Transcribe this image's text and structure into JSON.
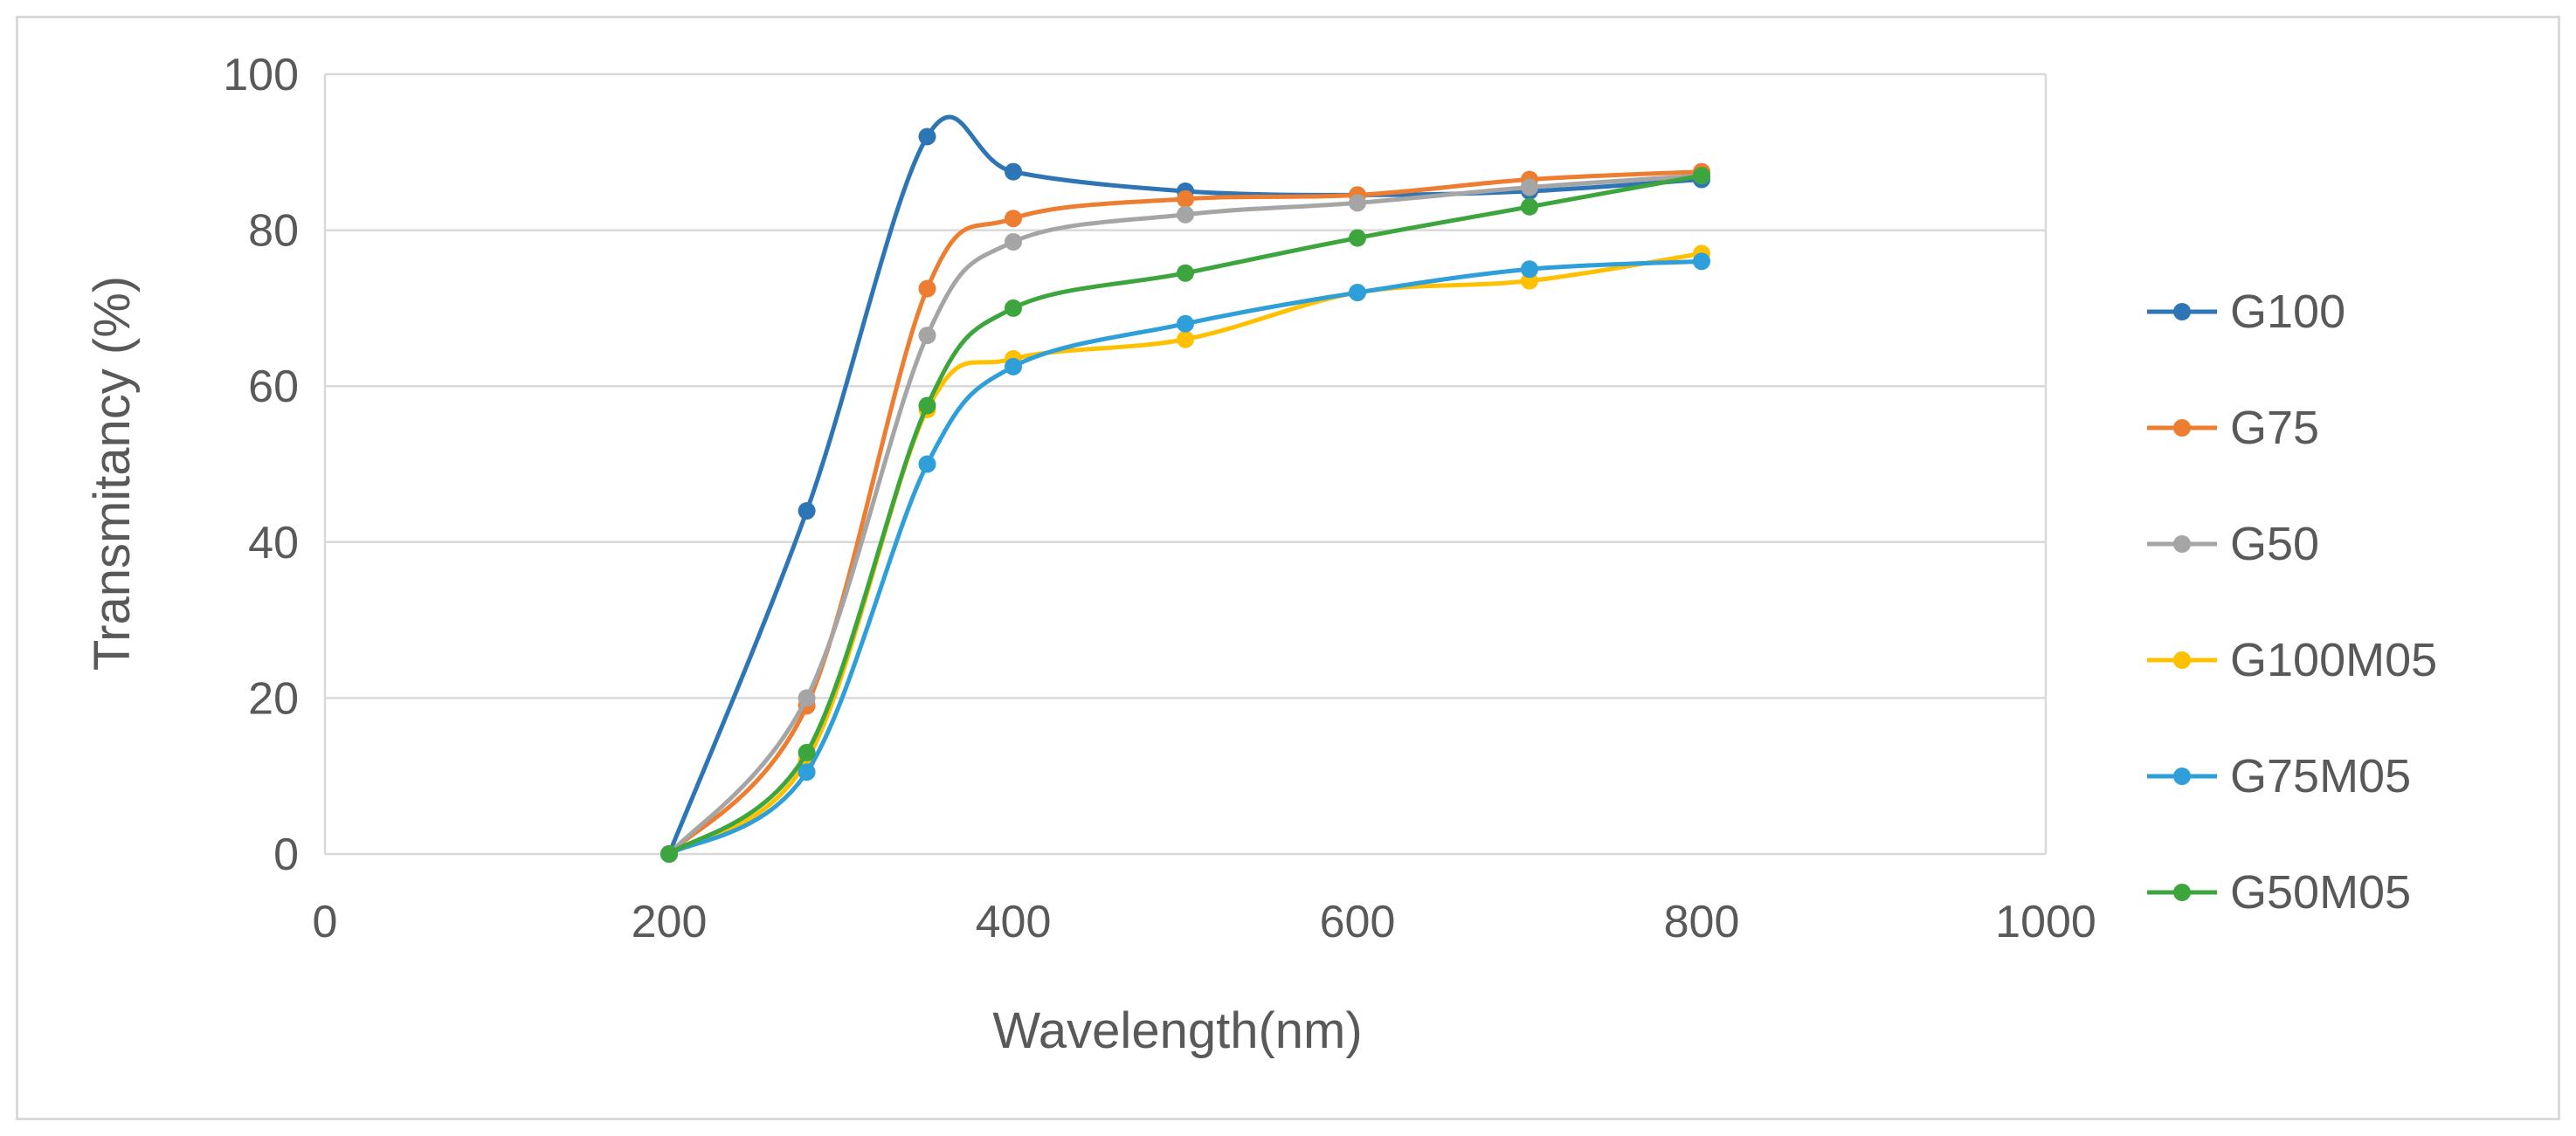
{
  "chart_data": {
    "type": "scatter",
    "title": "",
    "xlabel": "Wavelength(nm)",
    "ylabel": "Transmitancy (%)",
    "xlim": [
      0,
      1000
    ],
    "ylim": [
      0,
      100
    ],
    "xticks": [
      0,
      200,
      400,
      600,
      800,
      1000
    ],
    "yticks": [
      0,
      20,
      40,
      60,
      80,
      100
    ],
    "grid": "horizontal",
    "legend": "right",
    "x": [
      200,
      280,
      350,
      400,
      500,
      600,
      700,
      800
    ],
    "series": [
      {
        "name": "G100",
        "color": "#2e75b6",
        "values": [
          0,
          44,
          92,
          87.5,
          85,
          84.5,
          85,
          86.5
        ]
      },
      {
        "name": "G75",
        "color": "#ed7d31",
        "values": [
          0,
          19,
          72.5,
          81.5,
          84,
          84.5,
          86.5,
          87.5
        ]
      },
      {
        "name": "G50",
        "color": "#a5a5a5",
        "values": [
          0,
          20,
          66.5,
          78.5,
          82,
          83.5,
          85.5,
          87
        ]
      },
      {
        "name": "G100M05",
        "color": "#ffc000",
        "values": [
          0,
          12,
          57,
          63.5,
          66,
          72,
          73.5,
          77
        ]
      },
      {
        "name": "G75M05",
        "color": "#2e9fd9",
        "values": [
          0,
          10.5,
          50,
          62.5,
          68,
          72,
          75,
          76
        ]
      },
      {
        "name": "G50M05",
        "color": "#3da53d",
        "values": [
          0,
          13,
          57.5,
          70,
          74.5,
          79,
          83,
          87
        ]
      }
    ]
  }
}
